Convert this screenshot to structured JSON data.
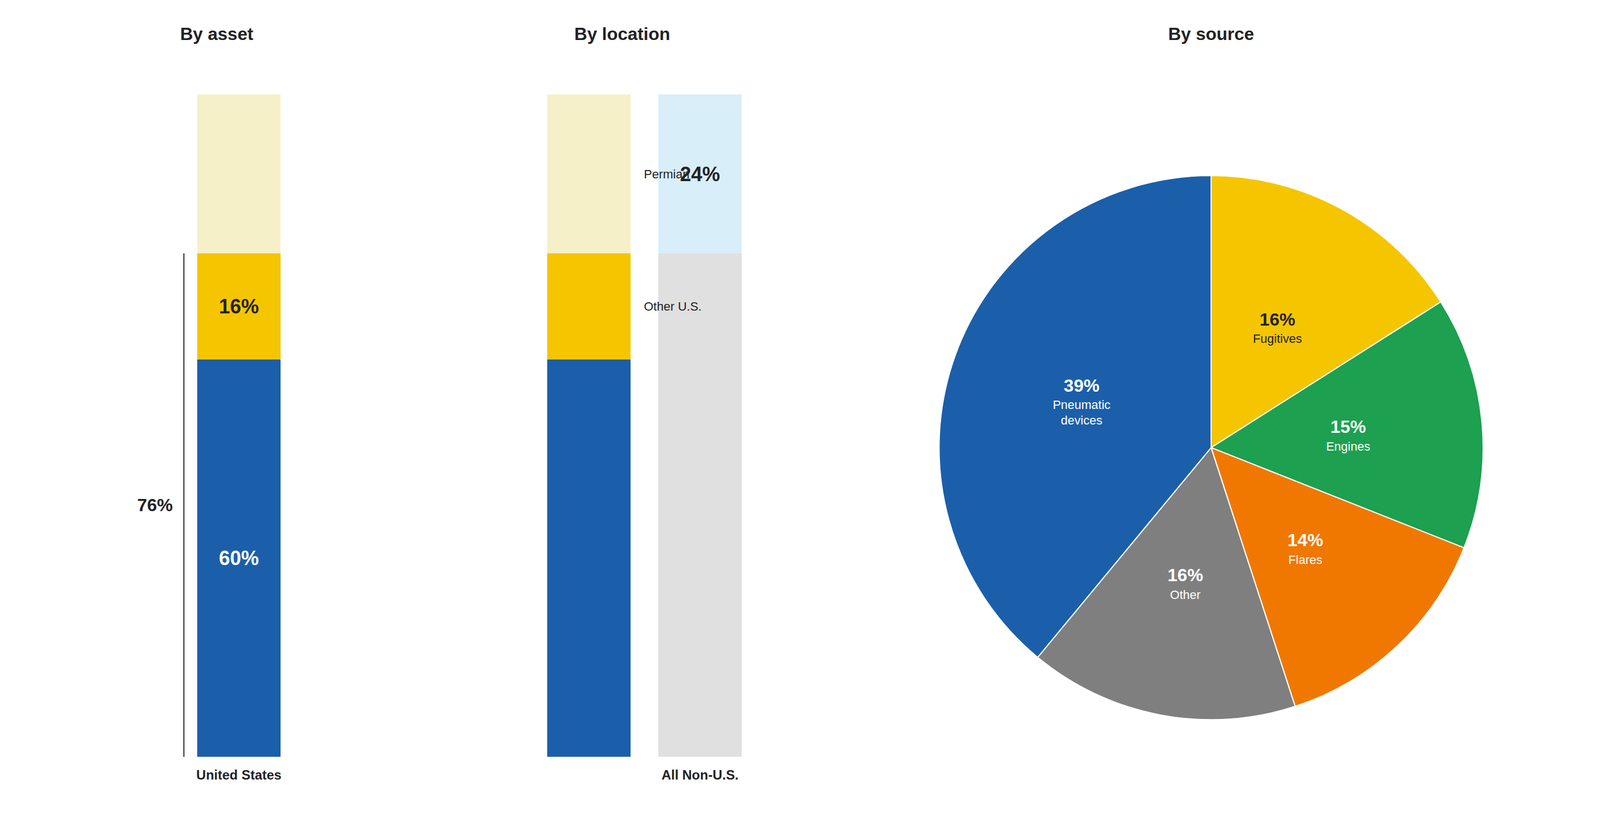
{
  "chart_data": [
    {
      "type": "bar",
      "title": "By asset",
      "stacked": true,
      "categories": [
        "United States"
      ],
      "series": [
        {
          "color": "#1b5faa",
          "values": [
            60
          ],
          "value_labels": [
            "60%"
          ]
        },
        {
          "color": "#f5c500",
          "values": [
            16
          ],
          "value_labels": [
            "16%"
          ]
        },
        {
          "color": "#f5f0c8",
          "values": [
            24
          ],
          "value_labels": [
            null
          ]
        }
      ],
      "data_labels": true,
      "annotations": [
        "76%"
      ],
      "ylim": [
        0,
        100
      ],
      "tick_labels": "x",
      "grid": false
    },
    {
      "type": "bar",
      "title": "By location",
      "stacked": true,
      "categories": [
        null,
        "All Non-U.S."
      ],
      "series": [
        {
          "color": "#1b5faa",
          "values": [
            60,
            null
          ],
          "value_labels": [
            null,
            null
          ]
        },
        {
          "color": "#f5c500",
          "values": [
            16,
            null
          ],
          "value_labels": [
            null,
            null
          ]
        },
        {
          "color": "#f5f0c8",
          "values": [
            24,
            null
          ],
          "value_labels": [
            null,
            null
          ]
        },
        {
          "color": "#e0e0e0",
          "values": [
            null,
            76
          ],
          "value_labels": [
            null,
            null
          ]
        },
        {
          "color": "#d8eef8",
          "values": [
            null,
            24
          ],
          "value_labels": [
            null,
            "24%"
          ]
        }
      ],
      "data_labels": true,
      "annotations": [
        "Permian",
        "Other U.S."
      ],
      "ylim": [
        0,
        100
      ],
      "tick_labels": "x",
      "grid": false
    },
    {
      "type": "pie",
      "title": "By source",
      "categories": [
        "Fugitives",
        "Engines",
        "Flares",
        "Other",
        "Pneumatic\ndevices"
      ],
      "values": [
        16,
        15,
        14,
        16,
        39
      ],
      "value_labels": [
        "16%",
        "15%",
        "14%",
        "16%",
        "39%"
      ],
      "colors": [
        "#f5c500",
        "#1da050",
        "#f07800",
        "#7f7f7f",
        "#1b5faa"
      ],
      "data_labels": true
    }
  ]
}
